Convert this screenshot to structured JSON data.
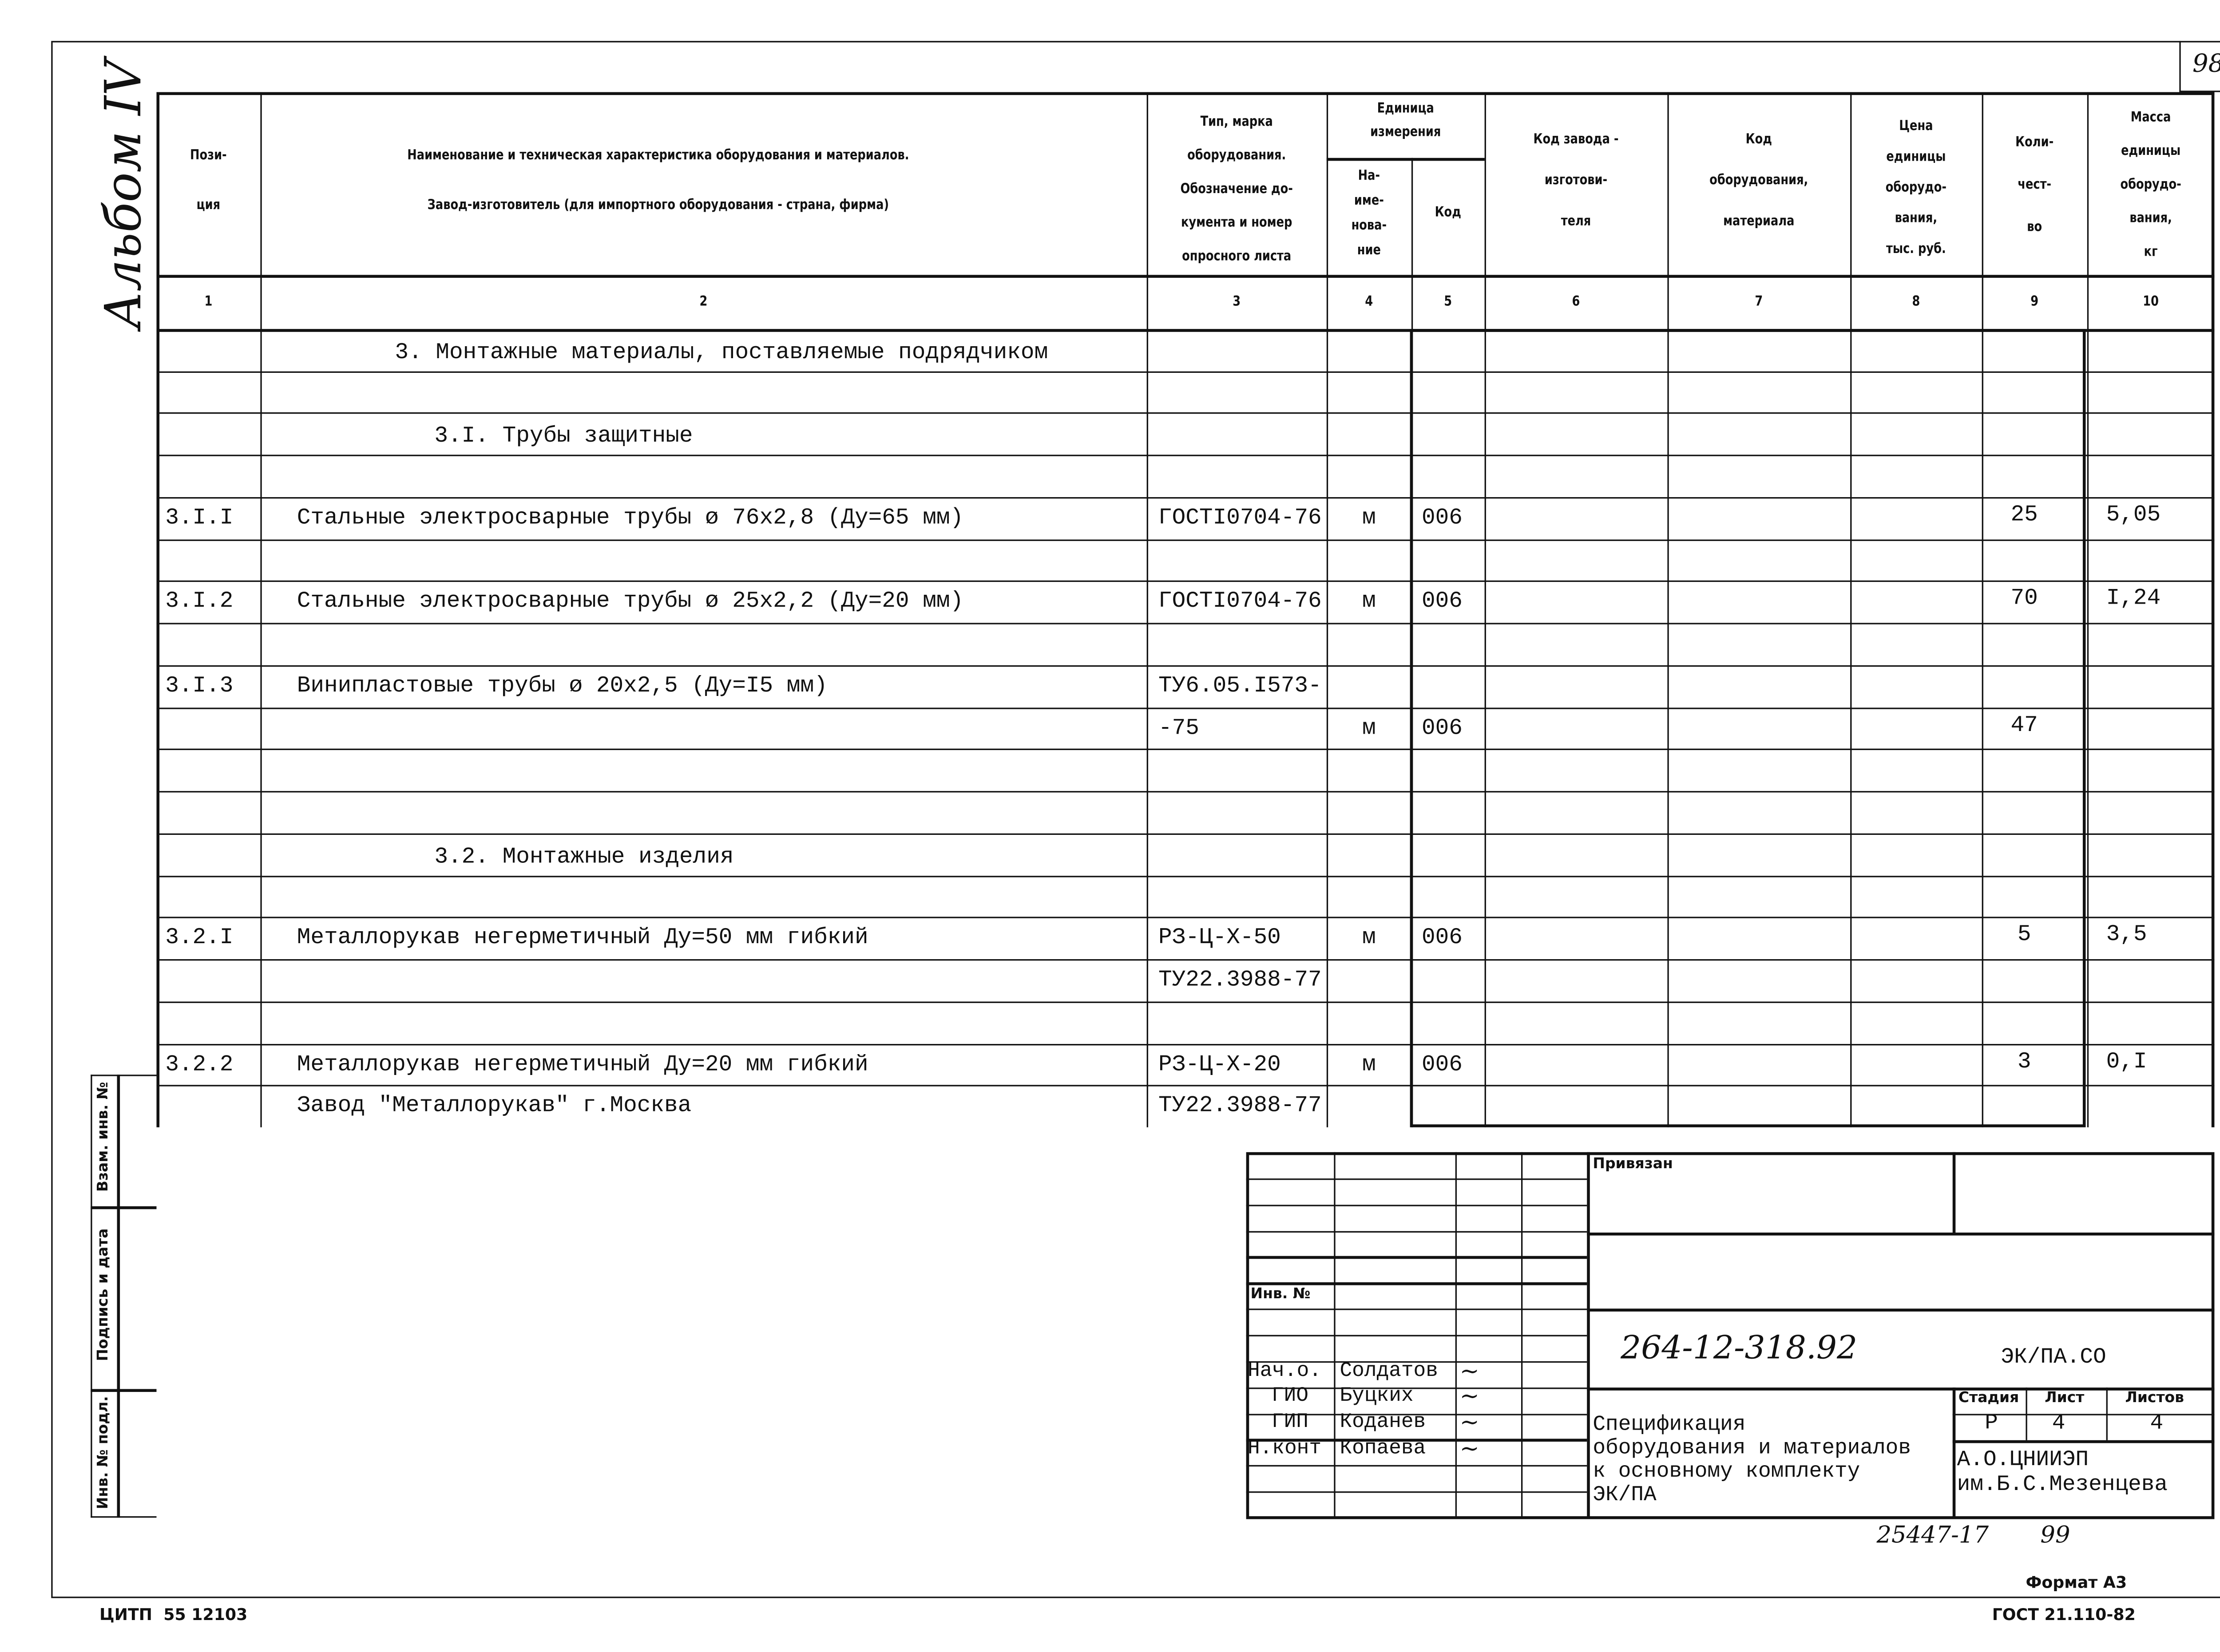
{
  "sheet_number": "98",
  "album_label": "Альбом IV",
  "header": {
    "col1": "Пози-\nция",
    "col2_line1": "Наименование и техническая характеристика  оборудования и материалов.",
    "col2_line2": "Завод-изготовитель  (для импортного оборудования -   страна, фирма)",
    "col3": "Тип,  марка\nоборудования.\nОбозначение до-\nкумента и номер\nопросного листа",
    "unit_group": "Единица\nизмерения",
    "col4": "На-\nиме-\nнова-\nние",
    "col5": "Код",
    "col6": "Код  завода -\nизготови-\nтеля",
    "col7": "Код\nоборудования,\nматериала",
    "col8": "Цена\nединицы\nоборудо-\nвания,\nтыс. руб.",
    "col9": "Коли-\nчест-\nво",
    "col10": "Масса\nединицы\nоборудо-\nвания,\nкг",
    "numbers": [
      "1",
      "2",
      "3",
      "4",
      "5",
      "6",
      "7",
      "8",
      "9",
      "10"
    ]
  },
  "rows": [
    {
      "name": "3. Монтажные материалы, поставляемые подрядчиком",
      "indent": "section"
    },
    {},
    {
      "name": "3.I.  Трубы защитные",
      "indent": "sub"
    },
    {},
    {
      "pos": "3.I.I",
      "name": "Стальные электросварные трубы ø 76x2,8 (Ду=65 мм)",
      "doc": "ГОСТI0704-76",
      "unit": "м",
      "code": "006",
      "qty": "25",
      "mass": "5,05"
    },
    {},
    {
      "pos": "3.I.2",
      "name": "Стальные электросварные трубы ø 25x2,2 (Ду=20 мм)",
      "doc": "ГОСТI0704-76",
      "unit": "м",
      "code": "006",
      "qty": "70",
      "mass": "I,24"
    },
    {},
    {
      "pos": "3.I.3",
      "name": "Винипластовые трубы    ø 20x2,5 (Ду=I5 мм)",
      "doc": "ТУ6.05.I573-"
    },
    {
      "doc": "-75",
      "unit": "м",
      "code": "006",
      "qty": "47"
    },
    {},
    {},
    {
      "name": "3.2.  Монтажные изделия",
      "indent": "sub"
    },
    {},
    {
      "pos": "3.2.I",
      "name": "Металлорукав негерметичный  Ду=50 мм  гибкий",
      "doc": "РЗ-Ц-Х-50",
      "unit": "м",
      "code": "006",
      "qty": "5",
      "mass": "3,5"
    },
    {
      "doc": "ТУ22.3988-77"
    },
    {},
    {
      "pos": "3.2.2",
      "name": "Металлорукав негерметичный Ду=20 мм  гибкий",
      "doc": "РЗ-Ц-Х-20",
      "unit": "м",
      "code": "006",
      "qty": "3",
      "mass": "0,I"
    },
    {
      "name": "Завод \"Металлорукав\"  г.Москва",
      "doc": "ТУ22.3988-77"
    }
  ],
  "side_stamp": [
    "Взам. инв. №",
    "Подпись и дата",
    "Инв. № подл."
  ],
  "title_block": {
    "inv_no_label": "Инв. №",
    "privyazan_label": "Привязан",
    "doc_code": "264-12-318.92",
    "doc_mark": "ЭК/ПА.СО",
    "signatures": [
      {
        "role": "Нач.о.",
        "name": "Солдатов"
      },
      {
        "role": "ГИО",
        "name": "Буцких"
      },
      {
        "role": "ГИП",
        "name": "Коданев"
      },
      {
        "role": "Н.конт",
        "name": "Копаева"
      }
    ],
    "title": "Спецификация\nоборудования и материалов\nк основному комплекту\nЭК/ПА",
    "stage_label": "Стадия",
    "sheet_label": "Лист",
    "sheets_label": "Листов",
    "stage": "Р",
    "sheet": "4",
    "sheets": "4",
    "organization": "А.О.ЦНИИЭП\nим.Б.С.Мезенцева"
  },
  "footer": {
    "archive_no": "25447-17",
    "archive_page": "99",
    "format": "Формат А3",
    "left_code": "ЦИТП  55 12103",
    "standard": "ГОСТ 21.110-82"
  }
}
